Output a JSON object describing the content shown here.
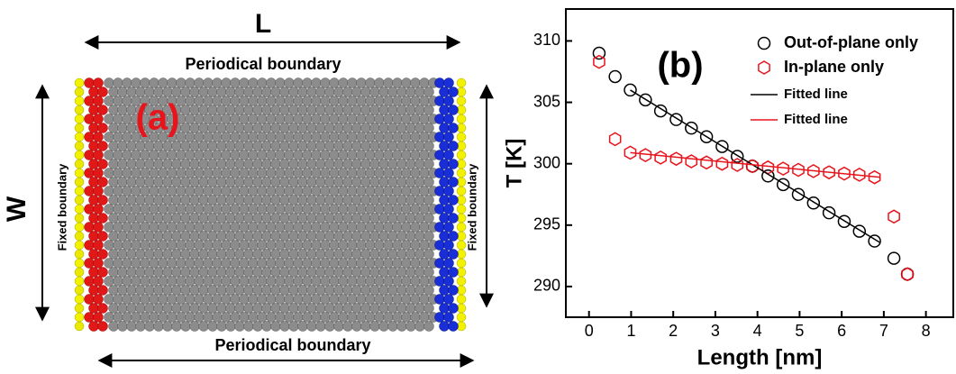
{
  "diagram": {
    "label": "(a)",
    "length": "L",
    "width": "W",
    "top_boundary": "Periodical boundary",
    "bottom_boundary": "Periodical boundary",
    "left_boundary": "Fixed boundary",
    "right_boundary": "Fixed boundary"
  },
  "chart_data": {
    "type": "scatter",
    "annotation": "(b)",
    "x_label": "Length [nm]",
    "y_label": "T [K]",
    "xlim": [
      -0.55,
      8.65
    ],
    "xticks": [
      0,
      1,
      2,
      3,
      4,
      5,
      6,
      7,
      8
    ],
    "ylim": [
      287.5,
      312.6
    ],
    "yticks": [
      290,
      295,
      300,
      305,
      310
    ],
    "series": [
      {
        "name": "Out-of-plane only",
        "color": "#000000",
        "marker": "circle",
        "x": [
          0.24,
          0.62,
          0.98,
          1.34,
          1.7,
          2.07,
          2.43,
          2.79,
          3.16,
          3.52,
          3.88,
          4.25,
          4.61,
          4.97,
          5.33,
          5.7,
          6.06,
          6.42,
          6.78,
          7.24,
          7.56
        ],
        "values": [
          309.0,
          307.1,
          306.0,
          305.2,
          304.3,
          303.6,
          302.9,
          302.2,
          301.4,
          300.6,
          299.8,
          299.0,
          298.3,
          297.5,
          296.8,
          296.0,
          295.3,
          294.5,
          293.7,
          292.3,
          291.0
        ]
      },
      {
        "name": "In-plane only",
        "color": "#e8141c",
        "marker": "hexagon",
        "x": [
          0.24,
          0.62,
          0.98,
          1.34,
          1.7,
          2.07,
          2.43,
          2.79,
          3.16,
          3.52,
          3.88,
          4.25,
          4.61,
          4.97,
          5.33,
          5.7,
          6.06,
          6.42,
          6.78,
          7.24,
          7.56
        ],
        "values": [
          308.3,
          302.0,
          300.9,
          300.7,
          300.5,
          300.4,
          300.2,
          300.1,
          300.0,
          299.9,
          299.8,
          299.7,
          299.6,
          299.5,
          299.4,
          299.3,
          299.2,
          299.1,
          298.9,
          295.7,
          291.0
        ]
      },
      {
        "name": "Fitted line",
        "color": "#000000",
        "marker": "line",
        "x": [
          0.98,
          6.9
        ],
        "values": [
          306.0,
          293.6
        ]
      },
      {
        "name": "Fitted line",
        "color": "#e8141c",
        "marker": "line",
        "x": [
          0.98,
          6.9
        ],
        "values": [
          300.9,
          298.9
        ]
      }
    ]
  }
}
